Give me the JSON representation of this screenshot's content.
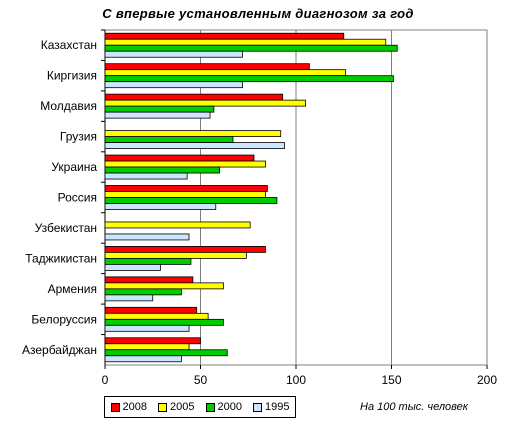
{
  "chart_data": {
    "type": "bar",
    "orientation": "horizontal",
    "title": "С впервые установленным диагнозом за год",
    "xlabel": "",
    "ylabel": "",
    "xlim": [
      0,
      200
    ],
    "xticks": [
      0,
      50,
      100,
      150,
      200
    ],
    "grid": "vertical",
    "legend_position": "bottom-left",
    "note": "На 100 тыс. человек",
    "categories": [
      "Казахстан",
      "Киргизия",
      "Молдавия",
      "Грузия",
      "Украина",
      "Россия",
      "Узбекистан",
      "Таджикистан",
      "Армения",
      "Белоруссия",
      "Азербайджан"
    ],
    "series": [
      {
        "name": "2008",
        "color": "#ff0000",
        "values": [
          125,
          107,
          93,
          null,
          78,
          85,
          null,
          84,
          46,
          48,
          50
        ]
      },
      {
        "name": "2005",
        "color": "#ffff00",
        "values": [
          147,
          126,
          105,
          92,
          84,
          84,
          76,
          74,
          62,
          54,
          44
        ]
      },
      {
        "name": "2000",
        "color": "#00cc00",
        "values": [
          153,
          151,
          57,
          67,
          60,
          90,
          null,
          45,
          40,
          62,
          64
        ]
      },
      {
        "name": "1995",
        "color": "#cce6ff",
        "values": [
          72,
          72,
          55,
          94,
          43,
          58,
          44,
          29,
          25,
          44,
          40
        ]
      }
    ]
  }
}
